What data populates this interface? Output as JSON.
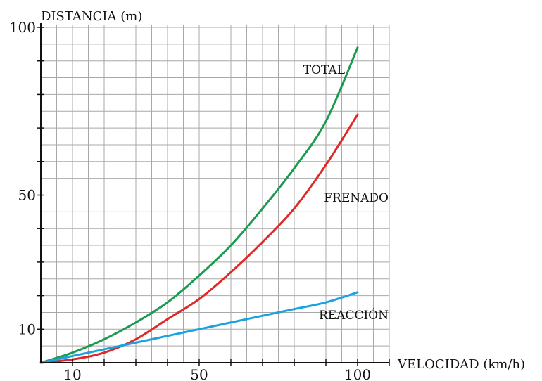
{
  "chart_data": {
    "type": "line",
    "xlabel": "VELOCIDAD (km/h)",
    "ylabel": "DISTANCIA (m)",
    "xlim": [
      0,
      110
    ],
    "ylim": [
      0,
      100
    ],
    "x_ticks": [
      10,
      50,
      100
    ],
    "y_ticks": [
      10,
      50,
      100
    ],
    "grid": true,
    "series": [
      {
        "name": "TOTAL",
        "color": "#1a9b50",
        "x": [
          0,
          10,
          20,
          30,
          40,
          50,
          60,
          70,
          80,
          90,
          100
        ],
        "y": [
          0,
          3,
          7,
          12,
          18,
          26,
          35,
          46,
          58,
          72,
          94
        ]
      },
      {
        "name": "FRENADO",
        "color": "#e02826",
        "x": [
          0,
          10,
          20,
          30,
          40,
          50,
          60,
          70,
          80,
          90,
          100
        ],
        "y": [
          0,
          1,
          3,
          7,
          13,
          19,
          27,
          36,
          46,
          59,
          74
        ]
      },
      {
        "name": "REACCIÓN",
        "color": "#1aa3e0",
        "x": [
          0,
          10,
          20,
          30,
          40,
          50,
          60,
          70,
          80,
          90,
          100
        ],
        "y": [
          0,
          2,
          4,
          6,
          8,
          10,
          12,
          14,
          16,
          18,
          21
        ]
      }
    ]
  }
}
